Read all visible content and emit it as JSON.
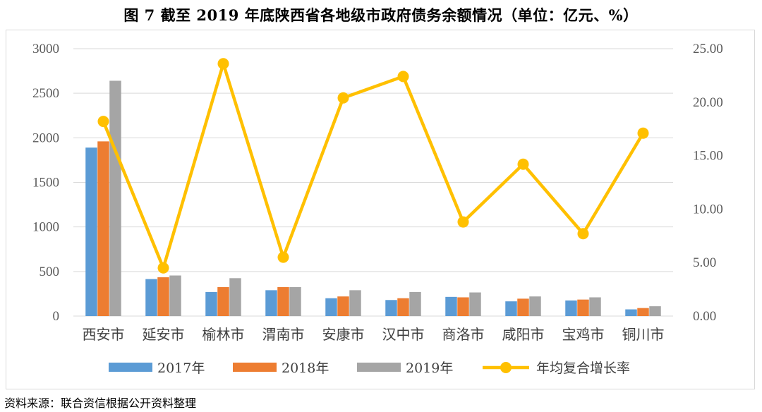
{
  "figure": {
    "title": "图 7   截至 2019 年底陕西省各地级市政府债务余额情况（单位：亿元、%）",
    "source": "资料来源：联合资信根据公开资料整理"
  },
  "colors": {
    "s2017": "#5b9bd5",
    "s2018": "#ed7d31",
    "s2019": "#a5a5a5",
    "rate": "#ffc000",
    "grid": "#d9d9d9",
    "axis_text": "#595959"
  },
  "chart_data": {
    "type": "bar",
    "categories": [
      "西安市",
      "延安市",
      "榆林市",
      "渭南市",
      "安康市",
      "汉中市",
      "商洛市",
      "咸阳市",
      "宝鸡市",
      "铜川市"
    ],
    "series": [
      {
        "name": "2017年",
        "type": "bar",
        "axis": "left",
        "values": [
          1890,
          415,
          270,
          290,
          200,
          180,
          215,
          165,
          175,
          75
        ]
      },
      {
        "name": "2018年",
        "type": "bar",
        "axis": "left",
        "values": [
          1960,
          435,
          325,
          325,
          220,
          200,
          210,
          195,
          185,
          90
        ]
      },
      {
        "name": "2019年",
        "type": "bar",
        "axis": "left",
        "values": [
          2640,
          455,
          425,
          325,
          290,
          270,
          265,
          220,
          210,
          110
        ]
      },
      {
        "name": "年均复合增长率",
        "type": "line",
        "axis": "right",
        "values": [
          18.2,
          4.5,
          23.6,
          5.5,
          20.4,
          22.4,
          8.8,
          14.2,
          7.7,
          17.1
        ]
      }
    ],
    "y_left": {
      "min": 0,
      "max": 3000,
      "ticks": [
        "0",
        "500",
        "1000",
        "1500",
        "2000",
        "2500",
        "3000"
      ]
    },
    "y_right": {
      "min": 0,
      "max": 25,
      "ticks": [
        "0.00",
        "5.00",
        "10.00",
        "15.00",
        "20.00",
        "25.00"
      ]
    },
    "grid": true,
    "legend_position": "bottom"
  }
}
